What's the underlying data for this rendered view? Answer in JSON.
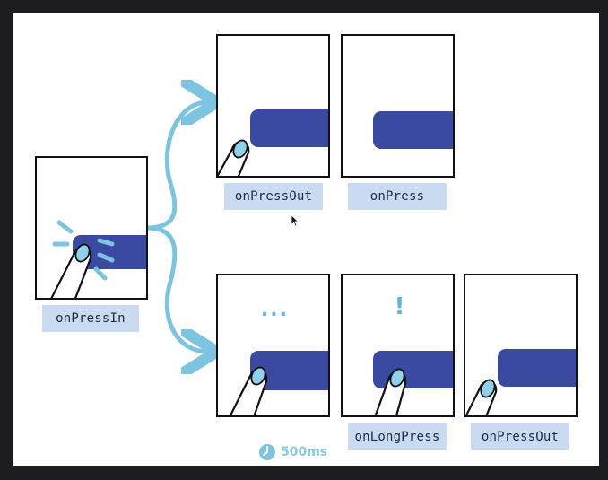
{
  "diagram": {
    "start_label": "onPressIn",
    "branch_short": [
      {
        "label": "onPressOut"
      },
      {
        "label": "onPress"
      }
    ],
    "branch_long": [
      {
        "label": "",
        "mark": "..."
      },
      {
        "label": "onLongPress",
        "mark": "!"
      },
      {
        "label": "onPressOut",
        "mark": ""
      }
    ],
    "timer_label": "500ms"
  },
  "colors": {
    "button": "#3a4aa0",
    "finger_tip": "#8fd0ea",
    "arrow": "#7cc4e0",
    "label_bg": "#c9daf1"
  }
}
